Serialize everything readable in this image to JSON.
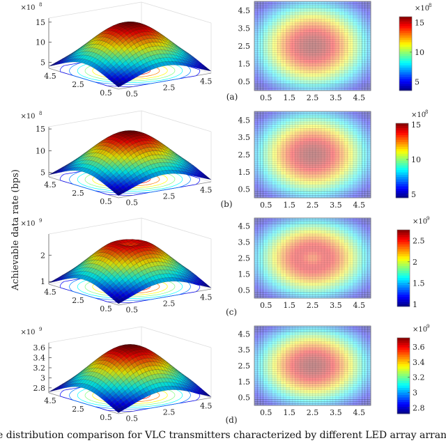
{
  "figure": {
    "ylabel": "Achievable data rate (bps)",
    "caption": "e distribution comparison for VLC transmitters characterized by different LED array arrangement and"
  },
  "chart_data": [
    {
      "panel": "(a)",
      "type": "surface+heatmap",
      "surface": {
        "exponent": "×10",
        "exponent_power": "8",
        "zticks": [
          "5",
          "10",
          "15"
        ],
        "zlim": [
          3.5,
          16
        ],
        "xticks": [
          "0.5",
          "2.5",
          "4.5"
        ],
        "yticks": [
          "0.5",
          "2.5",
          "4.5"
        ],
        "peak": 15.5,
        "corner": 4,
        "center_dip": 0
      },
      "heatmap": {
        "xticks": [
          "0.5",
          "1.5",
          "2.5",
          "3.5",
          "4.5"
        ],
        "yticks": [
          "0.5",
          "1.5",
          "2.5",
          "3.5",
          "4.5"
        ],
        "xlim": [
          0,
          5
        ],
        "ylim": [
          0,
          5
        ],
        "colormap": "jet"
      },
      "colorbar": {
        "exponent": "×10",
        "exponent_power": "8",
        "ticks": [
          "5",
          "10",
          "15"
        ],
        "range": [
          3.5,
          16
        ]
      }
    },
    {
      "panel": "(b)",
      "type": "surface+heatmap",
      "surface": {
        "exponent": "×10",
        "exponent_power": "8",
        "zticks": [
          "5",
          "10",
          "15"
        ],
        "zlim": [
          4,
          15.5
        ],
        "xticks": [
          "0.5",
          "2.5",
          "4.5"
        ],
        "yticks": [
          "0.5",
          "2.5",
          "4.5"
        ],
        "peak": 15,
        "corner": 4.5,
        "center_dip": 0
      },
      "heatmap": {
        "xticks": [
          "0.5",
          "1.5",
          "2.5",
          "3.5",
          "4.5"
        ],
        "yticks": [
          "0.5",
          "1.5",
          "2.5",
          "3.5",
          "4.5"
        ],
        "xlim": [
          0,
          5
        ],
        "ylim": [
          0,
          5
        ],
        "colormap": "jet"
      },
      "colorbar": {
        "exponent": "×10",
        "exponent_power": "8",
        "ticks": [
          "5",
          "10",
          "15"
        ],
        "range": [
          4.5,
          15.2
        ]
      }
    },
    {
      "panel": "(c)",
      "type": "surface+heatmap",
      "surface": {
        "exponent": "×10",
        "exponent_power": "9",
        "zticks": [
          "1",
          "2"
        ],
        "zlim": [
          0.9,
          2.8
        ],
        "xticks": [
          "0.5",
          "2.5",
          "4.5"
        ],
        "yticks": [
          "0.5",
          "2.5",
          "4.5"
        ],
        "peak": 2.75,
        "corner": 0.95,
        "center_dip": 0.2
      },
      "heatmap": {
        "xticks": [
          "0.5",
          "1.5",
          "2.5",
          "3.5",
          "4.5"
        ],
        "yticks": [
          "0.5",
          "1.5",
          "2.5",
          "3.5",
          "4.5"
        ],
        "xlim": [
          0,
          5
        ],
        "ylim": [
          0,
          5
        ],
        "colormap": "jet"
      },
      "colorbar": {
        "exponent": "×10",
        "exponent_power": "9",
        "ticks": [
          "1",
          "1.5",
          "2",
          "2.5"
        ],
        "range": [
          0.95,
          2.75
        ]
      }
    },
    {
      "panel": "(d)",
      "type": "surface+heatmap",
      "surface": {
        "exponent": "×10",
        "exponent_power": "9",
        "zticks": [
          "2.8",
          "3",
          "3.2",
          "3.4",
          "3.6"
        ],
        "zlim": [
          2.7,
          3.7
        ],
        "xticks": [
          "0.5",
          "2.5",
          "4.5"
        ],
        "yticks": [
          "0.5",
          "2.5",
          "4.5"
        ],
        "peak": 3.7,
        "corner": 2.72,
        "center_dip": 0
      },
      "heatmap": {
        "xticks": [
          "0.5",
          "1.5",
          "2.5",
          "3.5",
          "4.5"
        ],
        "yticks": [
          "0.5",
          "1.5",
          "2.5",
          "3.5",
          "4.5"
        ],
        "xlim": [
          0,
          5
        ],
        "ylim": [
          0,
          5
        ],
        "colormap": "jet"
      },
      "colorbar": {
        "exponent": "×10",
        "exponent_power": "9",
        "ticks": [
          "2.8",
          "3",
          "3.2",
          "3.4",
          "3.6"
        ],
        "range": [
          2.72,
          3.72
        ]
      }
    }
  ]
}
